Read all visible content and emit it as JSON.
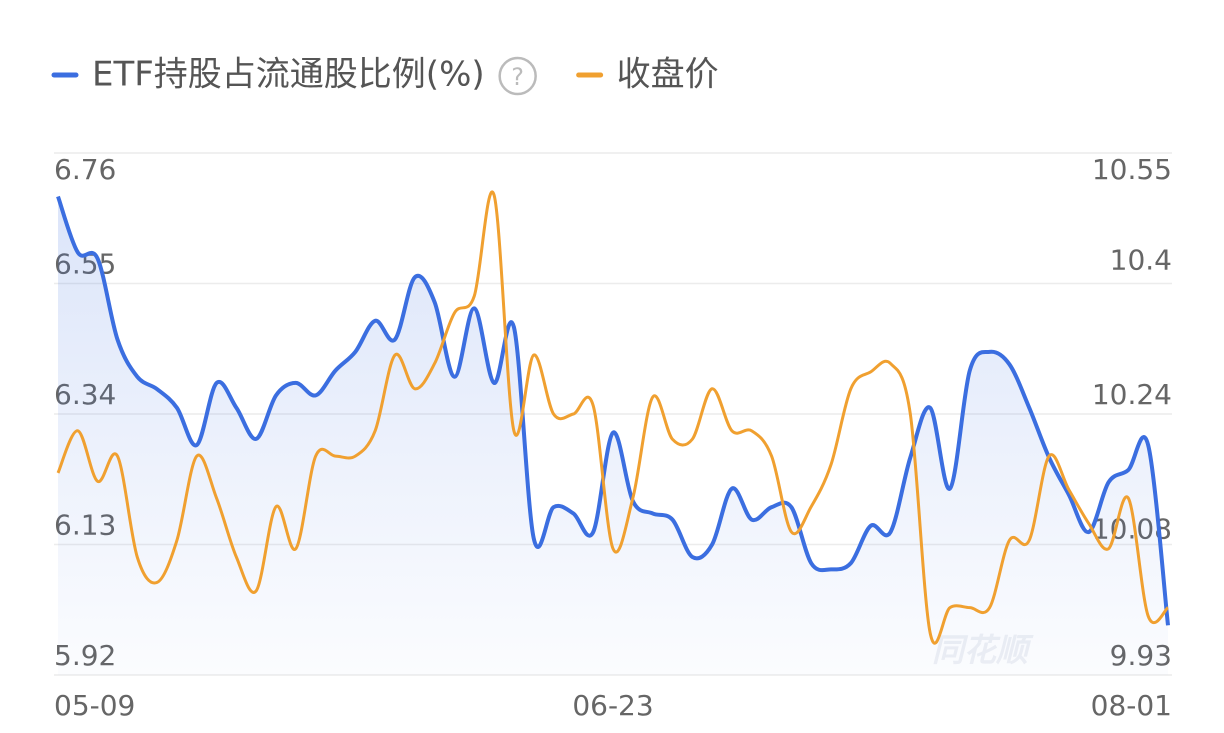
{
  "chart_data": {
    "type": "line",
    "legend_help": "?",
    "watermark": "同花顺",
    "categories": [
      "05-09",
      null,
      null,
      null,
      null,
      null,
      null,
      null,
      null,
      null,
      null,
      null,
      null,
      null,
      null,
      null,
      null,
      null,
      null,
      null,
      null,
      null,
      null,
      null,
      null,
      null,
      null,
      null,
      "06-23",
      null,
      null,
      null,
      null,
      null,
      null,
      null,
      null,
      null,
      null,
      null,
      null,
      null,
      null,
      null,
      null,
      null,
      null,
      null,
      null,
      null,
      null,
      null,
      null,
      null,
      null,
      null,
      "08-01"
    ],
    "series": [
      {
        "name": "ETF持股占流通股比例(%)",
        "color": "#3b6ee0",
        "area": true,
        "values": [
          6.69,
          6.6,
          6.59,
          6.46,
          6.4,
          6.38,
          6.35,
          6.29,
          6.39,
          6.35,
          6.3,
          6.37,
          6.39,
          6.37,
          6.41,
          6.44,
          6.49,
          6.46,
          6.56,
          6.52,
          6.4,
          6.51,
          6.39,
          6.48,
          6.14,
          6.19,
          6.18,
          6.15,
          6.31,
          6.2,
          6.18,
          6.17,
          6.11,
          6.13,
          6.22,
          6.17,
          6.19,
          6.19,
          6.1,
          6.09,
          6.1,
          6.16,
          6.15,
          6.27,
          6.35,
          6.22,
          6.41,
          6.44,
          6.42,
          6.35,
          6.27,
          6.21,
          6.15,
          6.23,
          6.25,
          6.29,
          6.0
        ]
      },
      {
        "name": "收盘价",
        "color": "#f0a030",
        "axis": "y2",
        "values": [
          10.17,
          10.22,
          10.16,
          10.19,
          10.07,
          10.04,
          10.09,
          10.19,
          10.14,
          10.07,
          10.03,
          10.13,
          10.08,
          10.19,
          10.19,
          10.19,
          10.22,
          10.31,
          10.27,
          10.3,
          10.36,
          10.38,
          10.5,
          10.22,
          10.31,
          10.24,
          10.24,
          10.25,
          10.08,
          10.14,
          10.26,
          10.21,
          10.21,
          10.27,
          10.22,
          10.22,
          10.19,
          10.1,
          10.13,
          10.18,
          10.27,
          10.29,
          10.3,
          10.24,
          9.98,
          10.01,
          10.01,
          10.01,
          10.09,
          10.09,
          10.19,
          10.15,
          10.11,
          10.08,
          10.14,
          10.0,
          10.01
        ]
      }
    ],
    "ylim": [
      5.92,
      6.76
    ],
    "yticks": [
      6.76,
      6.55,
      6.34,
      6.13,
      5.92
    ],
    "y2lim": [
      9.93,
      10.55
    ],
    "y2ticks": [
      10.55,
      10.4,
      10.24,
      10.08,
      9.93
    ],
    "grid": true
  }
}
